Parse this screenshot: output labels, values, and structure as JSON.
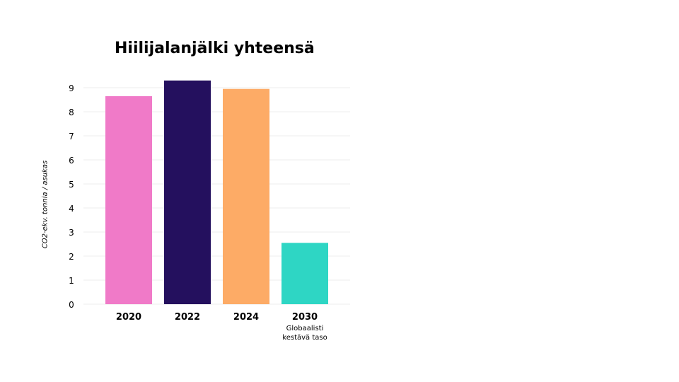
{
  "chart_data": {
    "type": "bar",
    "title": "Hiilijalanjälki yhteensä",
    "ylabel": "CO2-ekv. tonnia / asukas",
    "xlabel": "",
    "ylim": [
      0,
      9
    ],
    "yticks": [
      "0",
      "1",
      "2",
      "3",
      "4",
      "5",
      "6",
      "7",
      "8",
      "9"
    ],
    "grid": true,
    "categories": [
      "2020",
      "2022",
      "2024",
      "2030"
    ],
    "category_sublabels": [
      "",
      "",
      "",
      "Globaalisti kestävä taso"
    ],
    "values": [
      8.65,
      9.3,
      8.95,
      2.55
    ],
    "colors": [
      "#f07ac8",
      "#24105e",
      "#fdab66",
      "#2ed6c4"
    ]
  }
}
